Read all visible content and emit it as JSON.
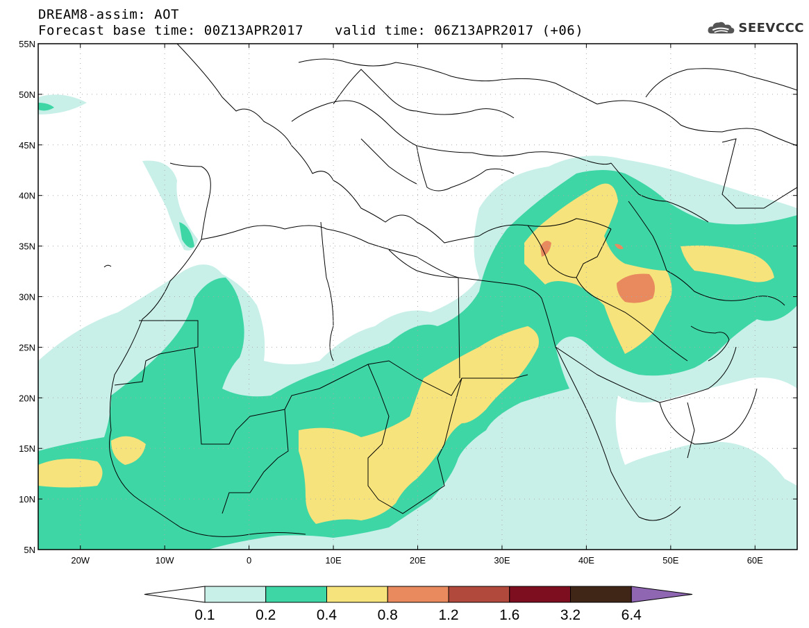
{
  "header": {
    "line1": "DREAM8-assim: AOT",
    "line2_left": "Forecast base time: 00Z13APR2017",
    "line2_right": "valid time: 06Z13APR2017 (+06)"
  },
  "logo": {
    "text": "SEEVCCC",
    "icon": "cloud-logo-icon"
  },
  "map": {
    "lon_range": [
      -25,
      65
    ],
    "lat_range": [
      5,
      55
    ],
    "lat_ticks": [
      "55N",
      "50N",
      "45N",
      "40N",
      "35N",
      "30N",
      "25N",
      "20N",
      "15N",
      "10N",
      "5N"
    ],
    "lon_ticks": [
      "20W",
      "10W",
      "0",
      "10E",
      "20E",
      "30E",
      "40E",
      "50E",
      "60E"
    ],
    "grid": "dotted"
  },
  "colorbar": {
    "labels": [
      "0.1",
      "0.2",
      "0.4",
      "0.8",
      "1.2",
      "1.6",
      "3.2",
      "6.4"
    ],
    "colors": [
      "#ffffff",
      "#c8f0e8",
      "#3fd6a6",
      "#f6e37b",
      "#e88a5e",
      "#b14a3c",
      "#7d0e1f",
      "#3f2616",
      "#8e66b2"
    ]
  }
}
